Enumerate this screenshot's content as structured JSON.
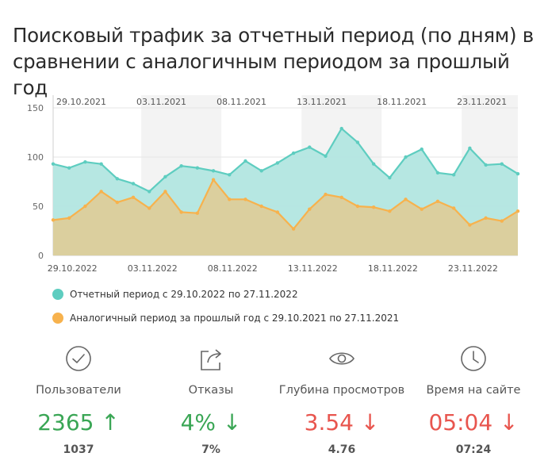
{
  "title": "Поисковый трафик за отчетный период (по дням) в сравнении с аналогичным периодом за прошлый год",
  "colors": {
    "current": "#5ecdc0",
    "previous": "#f7b24d",
    "current_fill": "#b2e6e0",
    "previous_fill": "#dfcc97"
  },
  "legend": {
    "current": "Отчетный период с 29.10.2022 по 27.11.2022",
    "previous": "Аналогичный период за прошлый год с 29.10.2021 по 27.11.2021"
  },
  "chart_data": {
    "type": "area",
    "title": "Поисковый трафик за отчетный период (по дням) в сравнении с аналогичным периодом за прошлый год",
    "ylim": [
      0,
      150
    ],
    "y_ticks": [
      0,
      50,
      100,
      150
    ],
    "x_bottom_ticks": [
      "29.10.2022",
      "03.11.2022",
      "08.11.2022",
      "13.11.2022",
      "18.11.2022",
      "23.11.2022"
    ],
    "x_top_ticks": [
      "29.10.2021",
      "03.11.2021",
      "08.11.2021",
      "13.11.2021",
      "18.11.2021",
      "23.11.2021"
    ],
    "tick_day_index": [
      1,
      6,
      11,
      16,
      21,
      26
    ],
    "grid": true,
    "legend_position": "bottom-left",
    "series": [
      {
        "name": "Отчетный период с 29.10.2022 по 27.11.2022",
        "values": [
          93,
          89,
          95,
          93,
          78,
          73,
          65,
          80,
          91,
          89,
          86,
          82,
          96,
          86,
          94,
          104,
          110,
          101,
          129,
          115,
          93,
          79,
          100,
          108,
          84,
          82,
          109,
          92,
          93,
          83
        ]
      },
      {
        "name": "Аналогичный период за прошлый год с 29.10.2021 по 27.11.2021",
        "values": [
          36,
          38,
          50,
          65,
          54,
          59,
          48,
          65,
          44,
          43,
          77,
          57,
          57,
          50,
          44,
          27,
          47,
          62,
          59,
          50,
          49,
          45,
          57,
          47,
          55,
          48,
          31,
          38,
          35,
          45
        ]
      }
    ]
  },
  "kpis": [
    {
      "label": "Пользователи",
      "value": "2365 ↑",
      "prev": "1037",
      "icon": "check-circle-icon",
      "trend": "up"
    },
    {
      "label": "Отказы",
      "value": "4% ↓",
      "prev": "7%",
      "icon": "share-icon",
      "trend": "down-good"
    },
    {
      "label": "Глубина просмотров",
      "value": "3.54 ↓",
      "prev": "4.76",
      "icon": "eye-icon",
      "trend": "down-bad"
    },
    {
      "label": "Время на сайте",
      "value": "05:04 ↓",
      "prev": "07:24",
      "icon": "clock-icon",
      "trend": "down-bad"
    }
  ]
}
